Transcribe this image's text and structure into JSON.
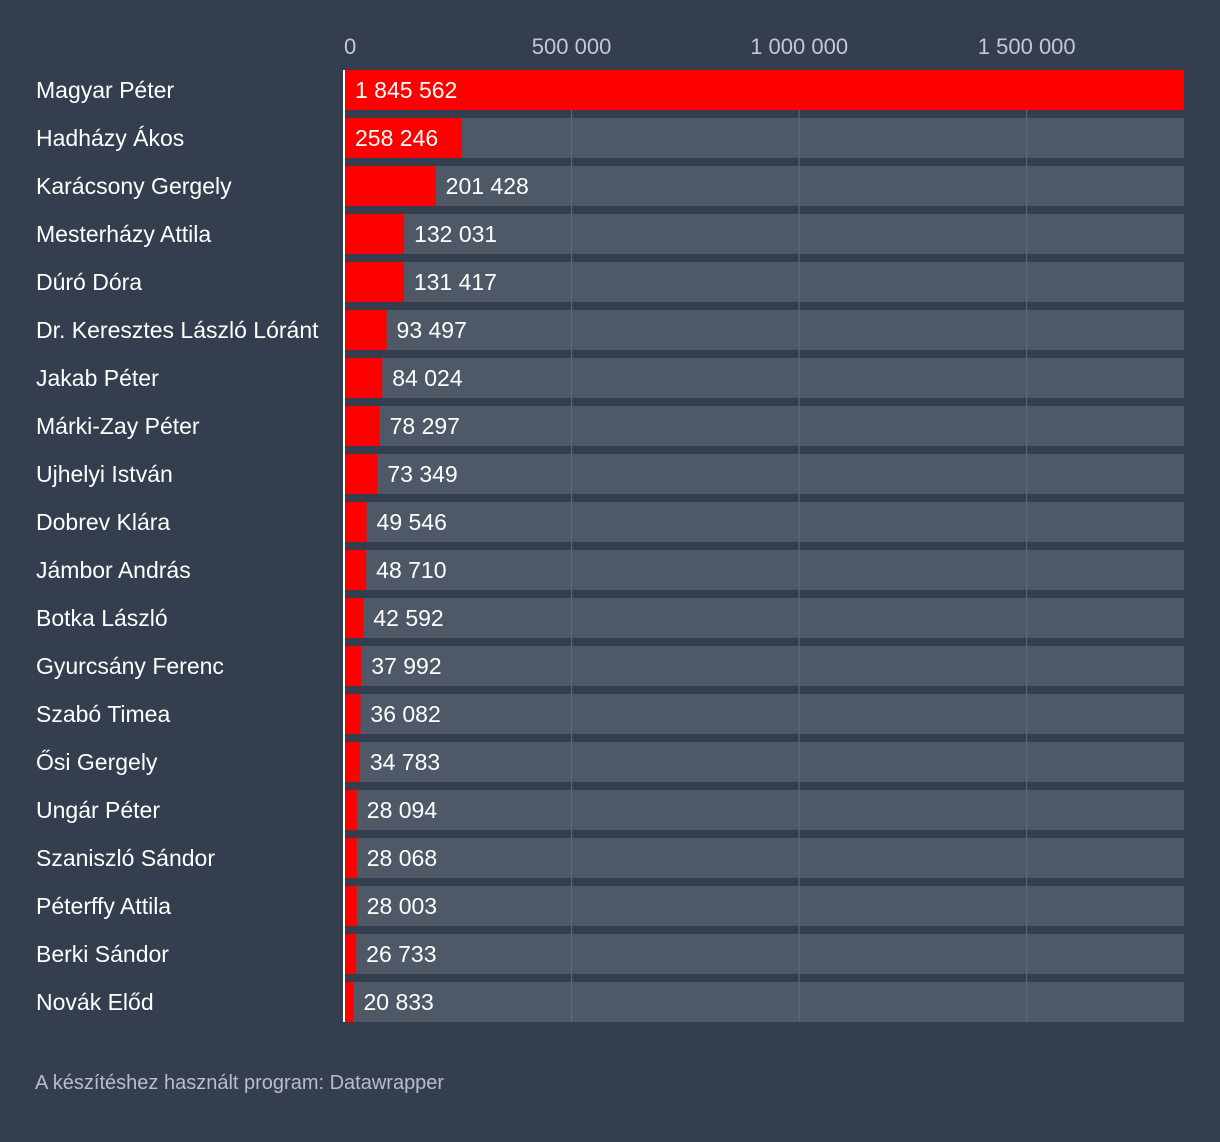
{
  "colors": {
    "background": "#343e4e",
    "track": "#4f5867",
    "bar": "#ff0000",
    "gridline": "#626b7a",
    "baseline": "#ffffff",
    "label": "#ffffff",
    "tick": "#c4c8cf",
    "footer": "#b9bec6"
  },
  "chart_data": {
    "type": "bar",
    "orientation": "horizontal",
    "title": "",
    "xlabel": "",
    "ylabel": "",
    "xlim": [
      0,
      1845562
    ],
    "xticks": [
      0,
      500000,
      1000000,
      1500000
    ],
    "xtick_labels": [
      "0",
      "500 000",
      "1 000 000",
      "1 500 000"
    ],
    "grid": true,
    "legend": "none",
    "categories": [
      "Magyar Péter",
      "Hadházy Ákos",
      "Karácsony Gergely",
      "Mesterházy Attila",
      "Dúró Dóra",
      "Dr. Keresztes László Lóránt",
      "Jakab Péter",
      "Márki-Zay Péter",
      "Ujhelyi István",
      "Dobrev Klára",
      "Jámbor András",
      "Botka László",
      "Gyurcsány Ferenc",
      "Szabó Timea",
      "Ősi Gergely",
      "Ungár Péter",
      "Szaniszló Sándor",
      "Péterffy Attila",
      "Berki Sándor",
      "Novák Előd"
    ],
    "values": [
      1845562,
      258246,
      201428,
      132031,
      131417,
      93497,
      84024,
      78297,
      73349,
      49546,
      48710,
      42592,
      37992,
      36082,
      34783,
      28094,
      28068,
      28003,
      26733,
      20833
    ],
    "value_labels": [
      "1 845 562",
      "258 246",
      "201 428",
      "132 031",
      "131 417",
      "93 497",
      "84 024",
      "78 297",
      "73 349",
      "49 546",
      "48 710",
      "42 592",
      "37 992",
      "36 082",
      "34 783",
      "28 094",
      "28 068",
      "28 003",
      "26 733",
      "20 833"
    ]
  },
  "footer": {
    "note": "A készítéshez használt program: Datawrapper"
  }
}
